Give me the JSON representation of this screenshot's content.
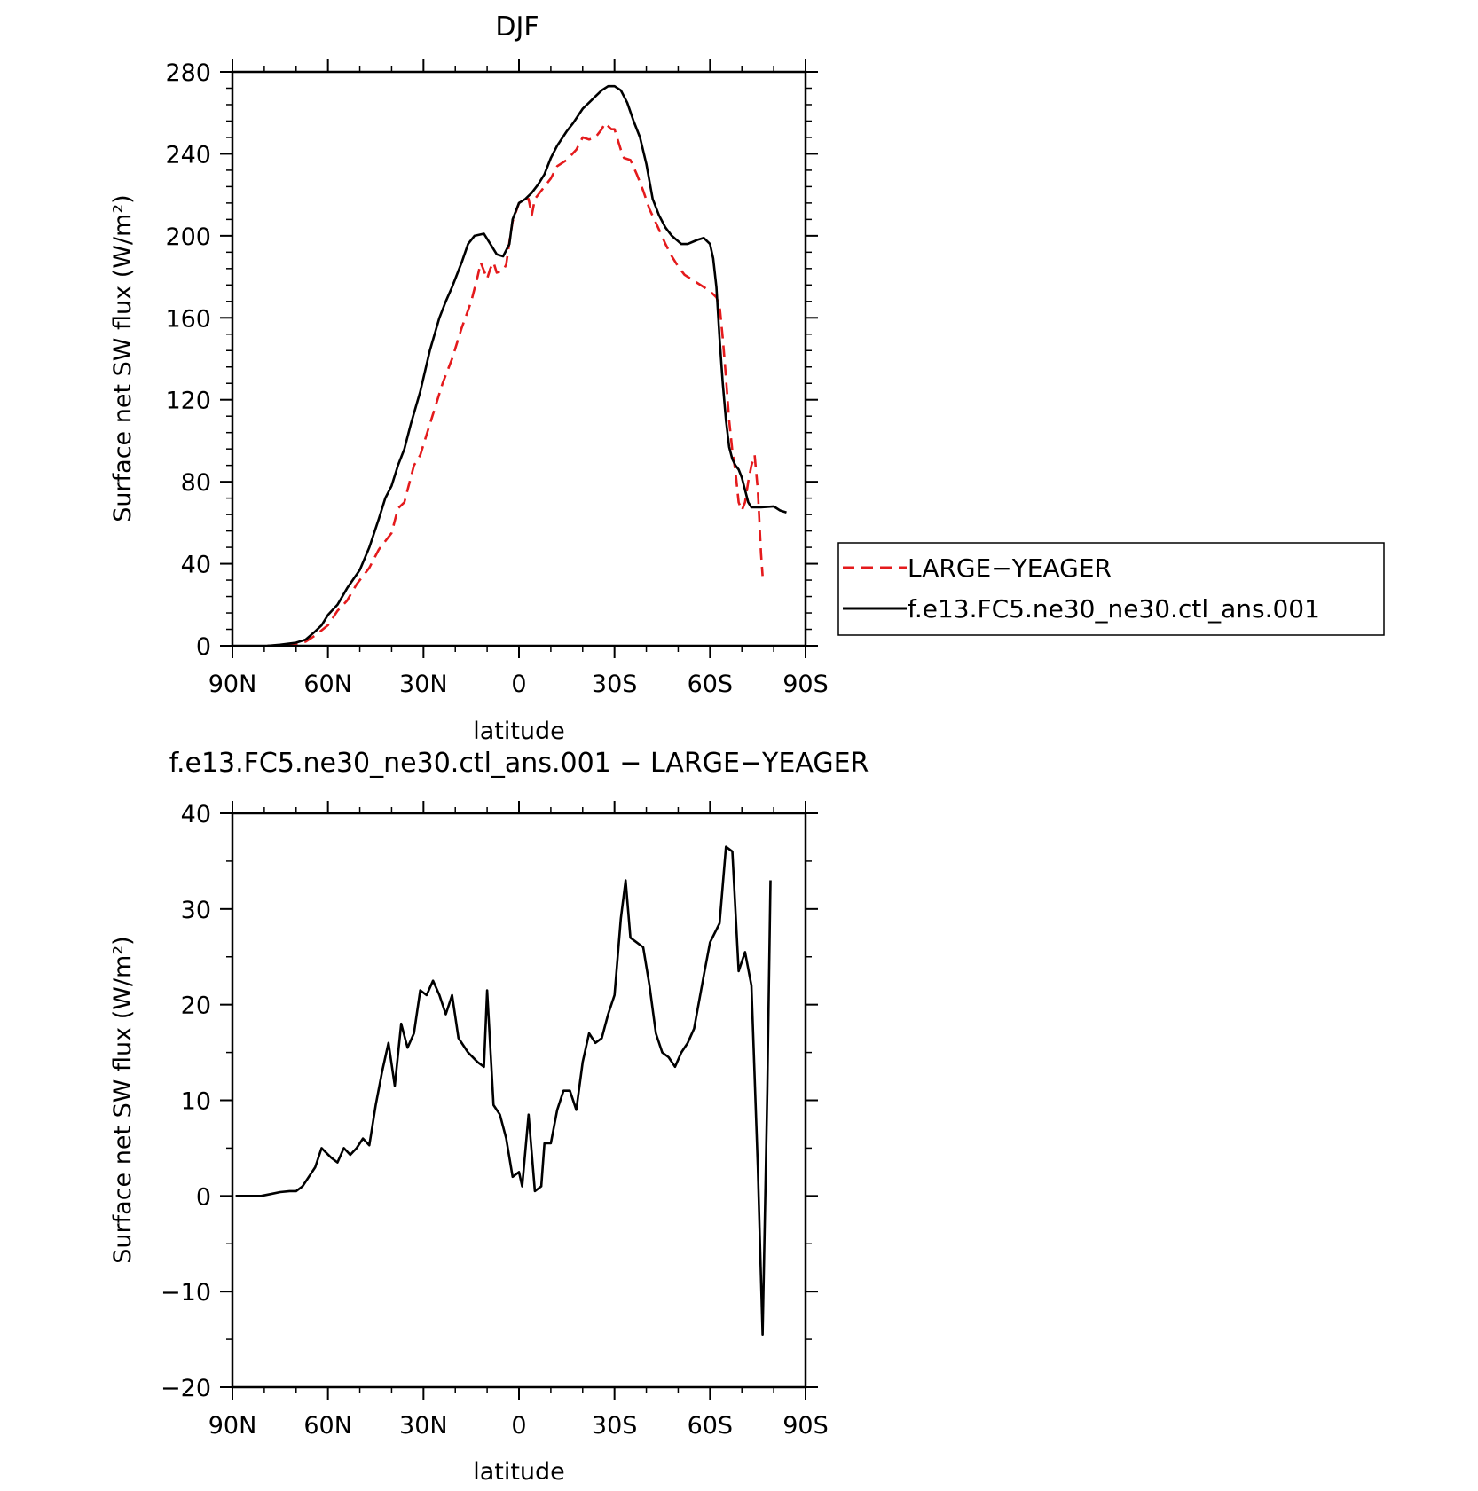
{
  "chart_data": [
    {
      "type": "line",
      "title": "DJF",
      "xlabel": "latitude",
      "ylabel": "Surface net SW flux (W/m²)",
      "xlim": [
        90,
        -90
      ],
      "ylim": [
        0,
        280
      ],
      "x_ticks": [
        90,
        60,
        30,
        0,
        -30,
        -60,
        -90
      ],
      "x_tick_labels": [
        "90N",
        "60N",
        "30N",
        "0",
        "30S",
        "60S",
        "90S"
      ],
      "y_ticks": [
        0,
        40,
        80,
        120,
        160,
        200,
        240,
        280
      ],
      "y_tick_labels": [
        "0",
        "40",
        "80",
        "120",
        "160",
        "200",
        "240",
        "280"
      ],
      "legend": {
        "placement": "right",
        "entries": [
          "LARGE−YEAGER",
          "f.e13.FC5.ne30_ne30.ctl_ans.001"
        ]
      },
      "series": [
        {
          "name": "LARGE−YEAGER",
          "color": "#e41a1c",
          "dash": true,
          "points": [
            [
              79,
              0
            ],
            [
              75,
              0.3
            ],
            [
              70,
              1
            ],
            [
              67,
              2
            ],
            [
              64,
              5
            ],
            [
              60,
              10
            ],
            [
              57,
              17
            ],
            [
              54,
              22
            ],
            [
              51,
              30
            ],
            [
              47,
              38
            ],
            [
              44,
              47
            ],
            [
              40,
              55
            ],
            [
              38,
              67
            ],
            [
              36,
              70
            ],
            [
              33,
              88
            ],
            [
              31,
              93
            ],
            [
              28,
              108
            ],
            [
              24,
              128
            ],
            [
              21,
              140
            ],
            [
              18,
              155
            ],
            [
              15,
              168
            ],
            [
              13,
              180
            ],
            [
              12,
              187
            ],
            [
              11,
              183
            ],
            [
              10,
              179
            ],
            [
              9,
              184
            ],
            [
              8,
              187
            ],
            [
              7,
              182
            ],
            [
              5,
              183
            ],
            [
              4,
              186
            ],
            [
              3,
              197
            ],
            [
              2,
              207
            ],
            [
              0,
              216
            ],
            [
              -3,
              218
            ],
            [
              -4,
              210
            ],
            [
              -5,
              218
            ],
            [
              -8,
              224
            ],
            [
              -10,
              228
            ],
            [
              -12,
              234
            ],
            [
              -15,
              237
            ],
            [
              -18,
              242
            ],
            [
              -20,
              248
            ],
            [
              -22,
              247
            ],
            [
              -24,
              248
            ],
            [
              -26,
              252
            ],
            [
              -27,
              255
            ],
            [
              -29,
              252
            ],
            [
              -30,
              252
            ],
            [
              -32,
              242
            ],
            [
              -33,
              238
            ],
            [
              -35,
              237
            ],
            [
              -37,
              230
            ],
            [
              -39,
              222
            ],
            [
              -41,
              213
            ],
            [
              -44,
              203
            ],
            [
              -46,
              196
            ],
            [
              -48,
              190
            ],
            [
              -50,
              185
            ],
            [
              -52,
              181
            ],
            [
              -54,
              179
            ],
            [
              -56,
              177
            ],
            [
              -58,
              175
            ],
            [
              -60,
              173
            ],
            [
              -62,
              170
            ],
            [
              -63,
              166
            ],
            [
              -64,
              150
            ],
            [
              -65,
              131
            ],
            [
              -66,
              110
            ],
            [
              -67,
              95
            ],
            [
              -68,
              85
            ],
            [
              -69,
              70
            ],
            [
              -70,
              66
            ],
            [
              -71,
              70
            ],
            [
              -72,
              80
            ],
            [
              -73,
              88
            ],
            [
              -74,
              93
            ],
            [
              -75,
              76
            ],
            [
              -76,
              45
            ],
            [
              -76.5,
              34
            ]
          ]
        },
        {
          "name": "f.e13.FC5.ne30_ne30.ctl_ans.001",
          "color": "#000000",
          "dash": false,
          "points": [
            [
              79,
              0
            ],
            [
              75,
              0.5
            ],
            [
              70,
              1.5
            ],
            [
              67,
              3
            ],
            [
              64,
              7
            ],
            [
              62,
              10
            ],
            [
              60,
              15
            ],
            [
              57,
              20
            ],
            [
              54,
              28
            ],
            [
              50,
              37
            ],
            [
              47,
              48
            ],
            [
              44,
              62
            ],
            [
              42,
              72
            ],
            [
              40,
              78
            ],
            [
              38,
              88
            ],
            [
              36,
              96
            ],
            [
              34,
              108
            ],
            [
              31,
              124
            ],
            [
              28,
              144
            ],
            [
              25,
              160
            ],
            [
              23,
              168
            ],
            [
              21,
              175
            ],
            [
              18,
              187
            ],
            [
              16,
              196
            ],
            [
              14,
              200
            ],
            [
              11,
              201
            ],
            [
              9,
              196
            ],
            [
              7,
              191
            ],
            [
              5,
              190
            ],
            [
              3,
              196
            ],
            [
              2,
              208
            ],
            [
              0,
              216
            ],
            [
              -2,
              218
            ],
            [
              -4,
              221
            ],
            [
              -6,
              225
            ],
            [
              -8,
              230
            ],
            [
              -10,
              238
            ],
            [
              -12,
              244
            ],
            [
              -15,
              251
            ],
            [
              -17,
              255
            ],
            [
              -20,
              262
            ],
            [
              -22,
              265
            ],
            [
              -24,
              268
            ],
            [
              -26,
              271
            ],
            [
              -28,
              273
            ],
            [
              -30,
              273
            ],
            [
              -32,
              271
            ],
            [
              -34,
              265
            ],
            [
              -36,
              256
            ],
            [
              -38,
              248
            ],
            [
              -40,
              235
            ],
            [
              -42,
              218
            ],
            [
              -44,
              210
            ],
            [
              -46,
              204
            ],
            [
              -48,
              200
            ],
            [
              -51,
              196
            ],
            [
              -53,
              196
            ],
            [
              -56,
              198
            ],
            [
              -58,
              199
            ],
            [
              -60,
              196
            ],
            [
              -61,
              189
            ],
            [
              -62,
              175
            ],
            [
              -63,
              150
            ],
            [
              -64,
              128
            ],
            [
              -65,
              110
            ],
            [
              -66,
              97
            ],
            [
              -67,
              91
            ],
            [
              -68,
              88
            ],
            [
              -69,
              86
            ],
            [
              -70,
              82
            ],
            [
              -71,
              76
            ],
            [
              -72,
              70
            ],
            [
              -73,
              67.5
            ],
            [
              -76,
              67.5
            ],
            [
              -80,
              68
            ],
            [
              -82,
              66
            ],
            [
              -84,
              65
            ]
          ]
        }
      ]
    },
    {
      "type": "line",
      "title": "f.e13.FC5.ne30_ne30.ctl_ans.001 − LARGE−YEAGER",
      "xlabel": "latitude",
      "ylabel": "Surface net SW flux (W/m²)",
      "xlim": [
        90,
        -90
      ],
      "ylim": [
        -20,
        40
      ],
      "x_ticks": [
        90,
        60,
        30,
        0,
        -30,
        -60,
        -90
      ],
      "x_tick_labels": [
        "90N",
        "60N",
        "30N",
        "0",
        "30S",
        "60S",
        "90S"
      ],
      "y_ticks": [
        -20,
        -10,
        0,
        10,
        20,
        30,
        40
      ],
      "y_tick_labels": [
        "−20",
        "−10",
        "0",
        "10",
        "20",
        "30",
        "40"
      ],
      "series": [
        {
          "color": "#000000",
          "dash": false,
          "points": [
            [
              89,
              0
            ],
            [
              81,
              0
            ],
            [
              78,
              0.2
            ],
            [
              75,
              0.4
            ],
            [
              72,
              0.5
            ],
            [
              70,
              0.5
            ],
            [
              68,
              1
            ],
            [
              66,
              2
            ],
            [
              64,
              3
            ],
            [
              62,
              5
            ],
            [
              59,
              4
            ],
            [
              57,
              3.5
            ],
            [
              55,
              5
            ],
            [
              53,
              4.3
            ],
            [
              51,
              5
            ],
            [
              49,
              6
            ],
            [
              47,
              5.3
            ],
            [
              45,
              9.5
            ],
            [
              43,
              13
            ],
            [
              41,
              16
            ],
            [
              39,
              11.5
            ],
            [
              37,
              18
            ],
            [
              35,
              15.5
            ],
            [
              33,
              17
            ],
            [
              31,
              21.5
            ],
            [
              29,
              21
            ],
            [
              27,
              22.5
            ],
            [
              25,
              21
            ],
            [
              23,
              19
            ],
            [
              21,
              21
            ],
            [
              19,
              16.5
            ],
            [
              16,
              15
            ],
            [
              13,
              14
            ],
            [
              11,
              13.5
            ],
            [
              10,
              21.5
            ],
            [
              8,
              9.5
            ],
            [
              6,
              8.5
            ],
            [
              4,
              6
            ],
            [
              2,
              2
            ],
            [
              0,
              2.5
            ],
            [
              -1,
              1
            ],
            [
              -3,
              8.5
            ],
            [
              -5,
              0.5
            ],
            [
              -7,
              1
            ],
            [
              -8,
              5.5
            ],
            [
              -10,
              5.5
            ],
            [
              -12,
              9
            ],
            [
              -14,
              11
            ],
            [
              -16,
              11
            ],
            [
              -18,
              9
            ],
            [
              -20,
              14
            ],
            [
              -22,
              17
            ],
            [
              -24,
              16
            ],
            [
              -26,
              16.5
            ],
            [
              -28,
              19
            ],
            [
              -30,
              21
            ],
            [
              -32,
              29
            ],
            [
              -33.5,
              33
            ],
            [
              -35,
              27
            ],
            [
              -37,
              26.5
            ],
            [
              -39,
              26
            ],
            [
              -41,
              22
            ],
            [
              -43,
              17
            ],
            [
              -45,
              15
            ],
            [
              -47,
              14.5
            ],
            [
              -49,
              13.5
            ],
            [
              -51,
              15
            ],
            [
              -53,
              16
            ],
            [
              -55,
              17.5
            ],
            [
              -58,
              23
            ],
            [
              -60,
              26.5
            ],
            [
              -63,
              28.5
            ],
            [
              -65,
              36.5
            ],
            [
              -67,
              36
            ],
            [
              -69,
              23.5
            ],
            [
              -71,
              25.5
            ],
            [
              -73,
              22
            ],
            [
              -75,
              3
            ],
            [
              -76.5,
              -14.5
            ],
            [
              -78,
              11
            ],
            [
              -79,
              33
            ]
          ]
        }
      ]
    }
  ]
}
